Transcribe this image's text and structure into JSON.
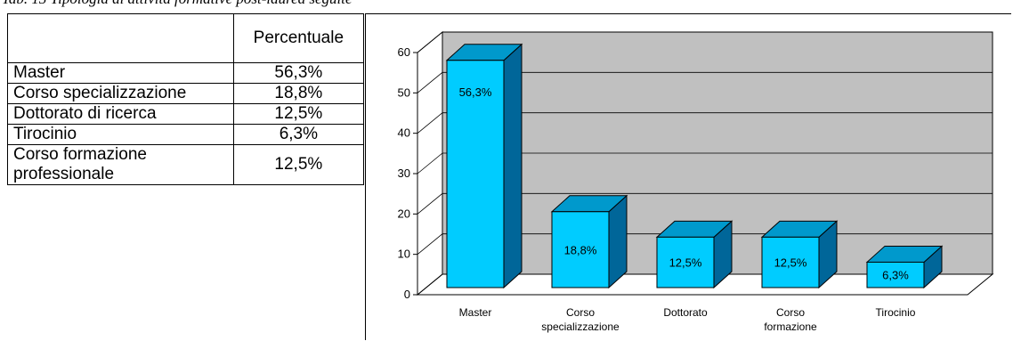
{
  "caption": "Tab. 13 Tipologia di attività formative post-laurea seguite",
  "table": {
    "header": [
      "",
      "Percentuale"
    ],
    "rows": [
      [
        "Master",
        "56,3%"
      ],
      [
        "Corso specializzazione",
        "18,8%"
      ],
      [
        "Dottorato di ricerca",
        "12,5%"
      ],
      [
        "Tirocinio",
        "6,3%"
      ],
      [
        "Corso formazione professionale",
        "12,5%"
      ]
    ]
  },
  "chart_data": {
    "type": "bar",
    "categories": [
      "Master",
      "Corso specializzazione",
      "Dottorato",
      "Corso formazione",
      "Tirocinio"
    ],
    "values": [
      56.3,
      18.8,
      12.5,
      12.5,
      6.3
    ],
    "data_labels": [
      "56,3%",
      "18,8%",
      "12,5%",
      "12,5%",
      "6,3%"
    ],
    "title": "",
    "xlabel": "",
    "ylabel": "",
    "ylim": [
      0,
      60
    ],
    "yticks": [
      "0",
      "10",
      "20",
      "30",
      "40",
      "50",
      "60"
    ],
    "grid": true,
    "colors": {
      "bar_front": "#00ccff",
      "bar_top": "#0099cc",
      "bar_side": "#006699",
      "wall": "#c0c0c0"
    }
  }
}
